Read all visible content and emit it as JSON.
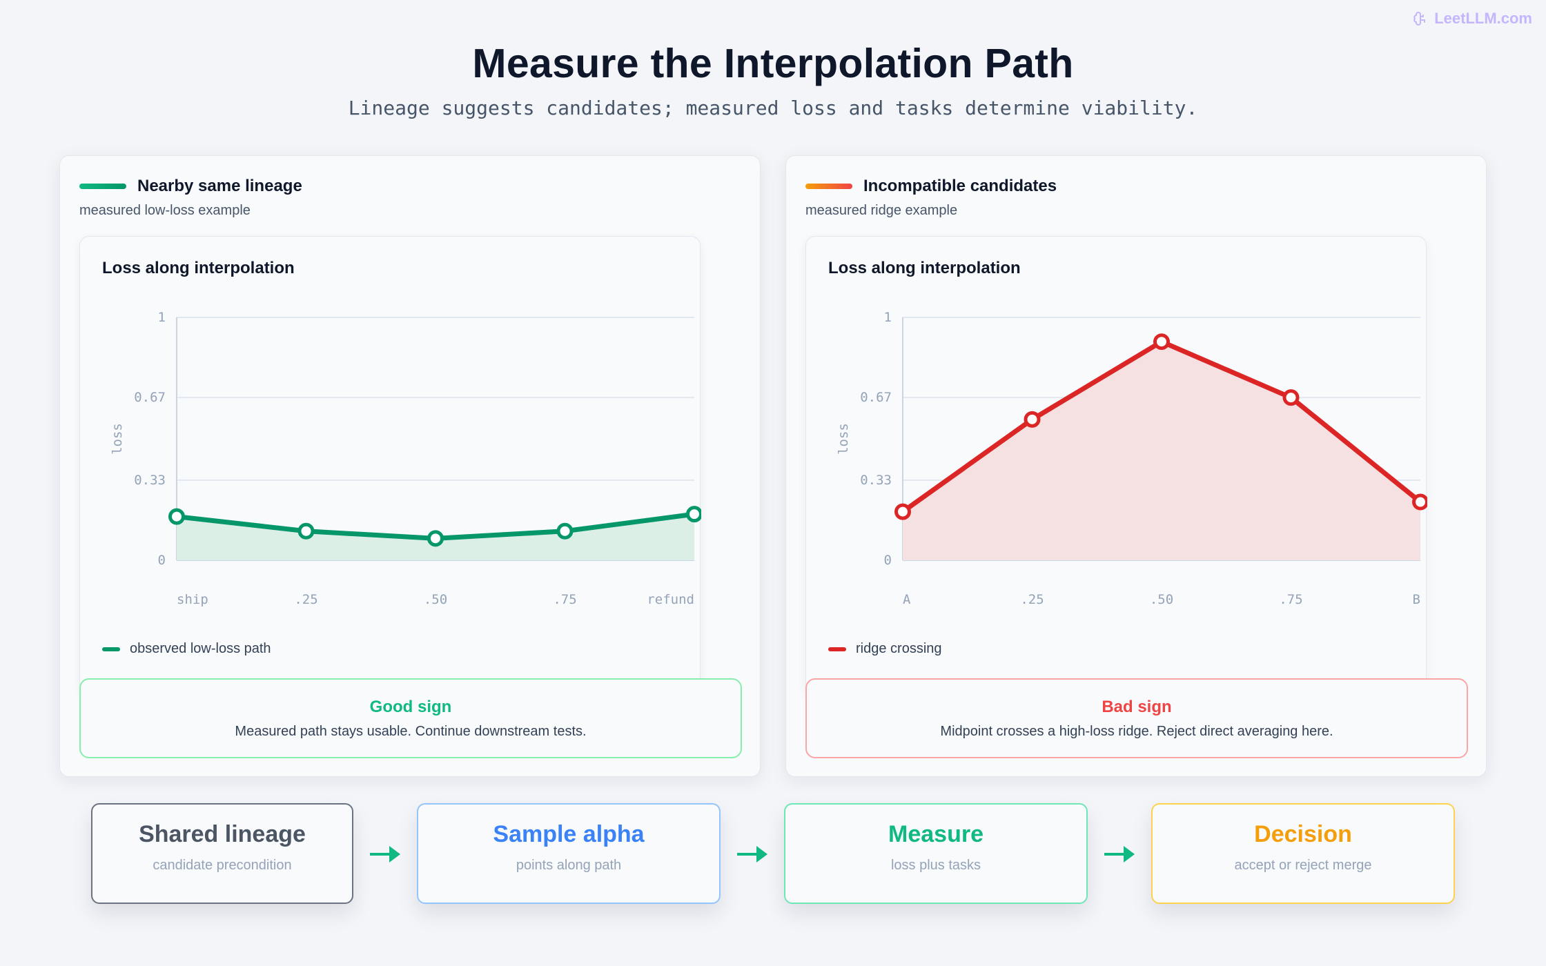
{
  "brand": {
    "label": "LeetLLM.com",
    "icon": "brain-icon"
  },
  "title": "Measure the Interpolation Path",
  "subtitle": "Lineage suggests candidates; measured loss and tasks determine viability.",
  "panels": [
    {
      "heading": "Nearby same lineage",
      "subheading": "measured low-loss example",
      "accent": [
        "#10b981",
        "#059669"
      ],
      "chart_title": "Loss along interpolation",
      "legend": "observed low-loss path",
      "sign_title": "Good sign",
      "sign_text": "Measured path stays usable. Continue downstream tests.",
      "sign_color": "#10b981",
      "sign_border": "#86efac"
    },
    {
      "heading": "Incompatible candidates",
      "subheading": "measured ridge example",
      "accent": [
        "#f59e0b",
        "#ef4444"
      ],
      "chart_title": "Loss along interpolation",
      "legend": "ridge crossing",
      "sign_title": "Bad sign",
      "sign_text": "Midpoint crosses a high-loss ridge. Reject direct averaging here.",
      "sign_color": "#ef4444",
      "sign_border": "#fca5a5"
    }
  ],
  "steps": [
    {
      "title": "Shared lineage",
      "sub": "candidate precondition",
      "color": "#4b5563",
      "border": "#6b7280"
    },
    {
      "title": "Sample alpha",
      "sub": "points along path",
      "color": "#3b82f6",
      "border": "#93c5fd"
    },
    {
      "title": "Measure",
      "sub": "loss plus tasks",
      "color": "#10b981",
      "border": "#6ee7b7"
    },
    {
      "title": "Decision",
      "sub": "accept or reject merge",
      "color": "#f59e0b",
      "border": "#fcd34d"
    }
  ],
  "arrow_color": "#10b981",
  "chart_data": [
    {
      "type": "line",
      "ylabel": "loss",
      "ylim": [
        0,
        1
      ],
      "yticks": [
        "0",
        "0.33",
        "0.67",
        "1"
      ],
      "categories": [
        "ship",
        ".25",
        ".50",
        ".75",
        "refund"
      ],
      "series": [
        {
          "name": "observed low-loss path",
          "values": [
            0.18,
            0.12,
            0.09,
            0.12,
            0.19
          ]
        }
      ],
      "color": "#059669",
      "fill": "#dcefe7",
      "grid": true
    },
    {
      "type": "line",
      "ylabel": "loss",
      "ylim": [
        0,
        1
      ],
      "yticks": [
        "0",
        "0.33",
        "0.67",
        "1"
      ],
      "categories": [
        "A",
        ".25",
        ".50",
        ".75",
        "B"
      ],
      "series": [
        {
          "name": "ridge crossing",
          "values": [
            0.2,
            0.58,
            0.9,
            0.67,
            0.24
          ]
        }
      ],
      "color": "#dc2626",
      "fill": "#f5e1e2",
      "grid": true
    }
  ]
}
